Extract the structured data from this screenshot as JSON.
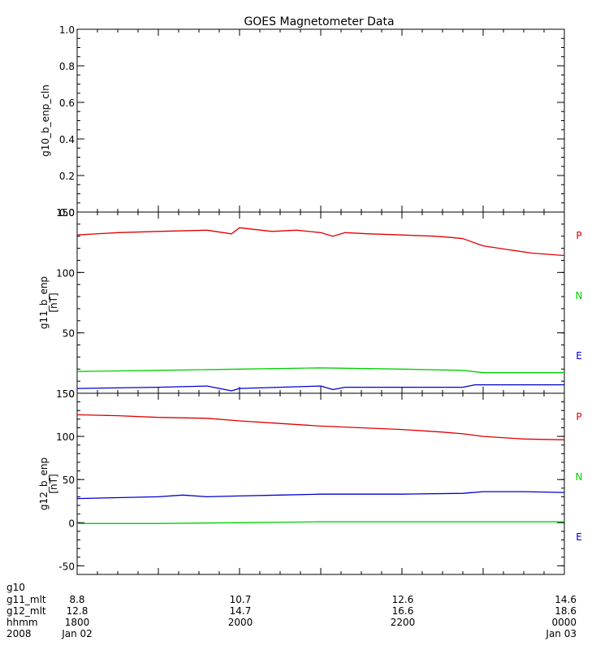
{
  "title": "GOES Magnetometer Data",
  "colors": {
    "P": "#e00000",
    "N": "#00d000",
    "E": "#0000d0",
    "axis": "#000000",
    "background": "#ffffff"
  },
  "time_axis": {
    "hours": [
      18,
      19,
      20,
      21,
      22,
      23,
      24
    ],
    "labeled_hours": [
      18,
      20,
      22,
      24
    ],
    "rows": [
      {
        "name": "g10",
        "values": [
          "",
          "",
          "",
          ""
        ]
      },
      {
        "name": "g11_mlt",
        "values": [
          "8.8",
          "10.7",
          "12.6",
          "14.6"
        ]
      },
      {
        "name": "g12_mlt",
        "values": [
          "12.8",
          "14.7",
          "16.6",
          "18.6"
        ]
      },
      {
        "name": "hhmm",
        "values": [
          "1800",
          "2000",
          "2200",
          "0000"
        ]
      },
      {
        "name": "2008",
        "values": [
          "Jan 02",
          "",
          "",
          "Jan 03"
        ]
      }
    ]
  },
  "chart_data": [
    {
      "type": "line",
      "ylabel": "g10_b_enp_cln",
      "ylabel_units": "",
      "ylim": [
        0,
        1
      ],
      "yticks": [
        0,
        0.2,
        0.4,
        0.6,
        0.8,
        1.0
      ],
      "ytick_labels": [
        "0.0",
        "0.2",
        "0.4",
        "0.6",
        "0.8",
        "1.0"
      ],
      "yminor_step": 0.05,
      "series": []
    },
    {
      "type": "line",
      "ylabel": "g11_b_enp",
      "ylabel_units": "[nT]",
      "ylim": [
        0,
        150
      ],
      "yticks": [
        0,
        50,
        100,
        150
      ],
      "ytick_labels": [
        "0",
        "50",
        "100",
        "150"
      ],
      "yminor_step": 10,
      "series": [
        {
          "name": "P",
          "color": "#e00000",
          "x": [
            18.0,
            18.5,
            19.0,
            19.6,
            19.9,
            20.0,
            20.4,
            20.7,
            21.0,
            21.15,
            21.3,
            21.6,
            22.0,
            22.4,
            22.6,
            22.75,
            23.0,
            23.3,
            23.6,
            24.0
          ],
          "y": [
            131,
            133,
            134,
            135,
            132,
            137,
            134,
            135,
            133,
            130,
            133,
            132,
            131,
            130,
            129,
            128,
            122,
            119,
            116,
            114
          ]
        },
        {
          "name": "N",
          "color": "#00d000",
          "x": [
            18.0,
            19.0,
            20.0,
            21.0,
            22.0,
            22.75,
            23.0,
            24.0
          ],
          "y": [
            18,
            19,
            20,
            21,
            20,
            19,
            17,
            17
          ]
        },
        {
          "name": "E",
          "color": "#0000d0",
          "x": [
            18.0,
            19.0,
            19.6,
            19.9,
            20.0,
            20.5,
            21.0,
            21.15,
            21.3,
            22.0,
            22.75,
            22.9,
            23.2,
            24.0
          ],
          "y": [
            4,
            5,
            6,
            2,
            4,
            5,
            6,
            3,
            5,
            5,
            5,
            7,
            7,
            7
          ]
        }
      ]
    },
    {
      "type": "line",
      "ylabel": "g12_b_enp",
      "ylabel_units": "[nT]",
      "ylim": [
        -60,
        150
      ],
      "yticks": [
        -50,
        0,
        50,
        100,
        150
      ],
      "ytick_labels": [
        "-50",
        "0",
        "50",
        "100",
        "150"
      ],
      "yminor_step": 10,
      "series": [
        {
          "name": "P",
          "color": "#e00000",
          "x": [
            18.0,
            18.5,
            19.0,
            19.6,
            20.0,
            20.5,
            21.0,
            21.5,
            22.0,
            22.5,
            22.75,
            23.0,
            23.5,
            24.0
          ],
          "y": [
            125,
            124,
            122,
            121,
            118,
            115,
            112,
            110,
            108,
            105,
            103,
            100,
            97,
            96
          ]
        },
        {
          "name": "N",
          "color": "#00d000",
          "x": [
            18.0,
            19.0,
            20.0,
            21.0,
            22.0,
            23.0,
            24.0
          ],
          "y": [
            -1,
            -1,
            0,
            1,
            1,
            1,
            1
          ]
        },
        {
          "name": "E",
          "color": "#0000d0",
          "x": [
            18.0,
            18.5,
            19.0,
            19.3,
            19.6,
            20.0,
            20.5,
            21.0,
            22.0,
            22.75,
            23.0,
            23.5,
            24.0
          ],
          "y": [
            28,
            29,
            30,
            32,
            30,
            31,
            32,
            33,
            33,
            34,
            36,
            36,
            35
          ]
        }
      ]
    }
  ]
}
